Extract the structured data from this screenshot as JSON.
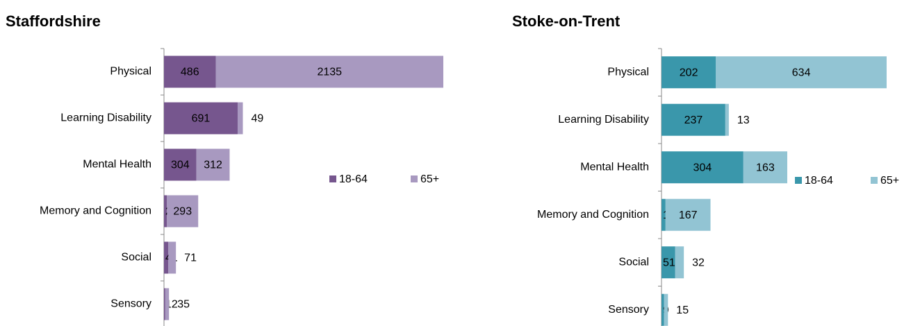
{
  "chart_data": [
    {
      "type": "bar",
      "orientation": "horizontal",
      "stacked": true,
      "title": "Staffordshire",
      "categories": [
        "Physical",
        "Learning Disability",
        "Mental Health",
        "Memory and Cognition",
        "Social",
        "Sensory"
      ],
      "series": [
        {
          "name": "18-64",
          "color": "#76568e",
          "values": [
            486,
            691,
            304,
            28,
            41,
            12
          ]
        },
        {
          "name": "65+",
          "color": "#a899c0",
          "values": [
            2135,
            49,
            312,
            293,
            71,
            35
          ]
        }
      ]
    },
    {
      "type": "bar",
      "orientation": "horizontal",
      "stacked": true,
      "title": "Stoke-on-Trent",
      "categories": [
        "Physical",
        "Learning Disability",
        "Mental Health",
        "Memory and Cognition",
        "Social",
        "Sensory"
      ],
      "series": [
        {
          "name": "18-64",
          "color": "#3a97ab",
          "values": [
            202,
            237,
            304,
            15,
            51,
            9
          ]
        },
        {
          "name": "65+",
          "color": "#92c4d3",
          "values": [
            634,
            13,
            163,
            167,
            32,
            15
          ]
        }
      ]
    }
  ]
}
